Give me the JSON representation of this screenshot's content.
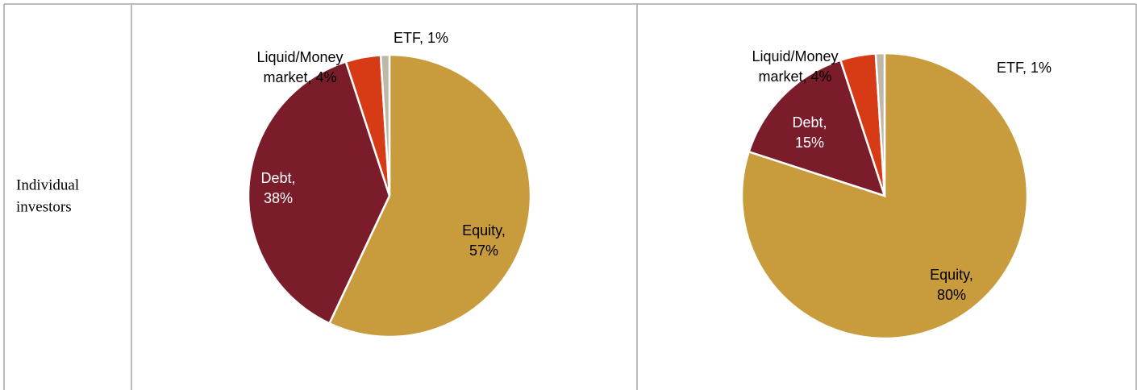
{
  "table": {
    "rows": [
      {
        "label": [
          "Individual",
          "investors"
        ]
      }
    ]
  },
  "chart_data": [
    {
      "type": "pie",
      "categories": [
        "Equity",
        "Debt",
        "Liquid/Money market",
        "ETF"
      ],
      "values": [
        57,
        38,
        4,
        1
      ],
      "value_labels": [
        [
          "Equity,",
          "57%"
        ],
        [
          "Debt,",
          "38%"
        ],
        [
          "Liquid/Money",
          "market, 4%"
        ],
        [
          "ETF, 1%"
        ]
      ],
      "colors": [
        "#c89b3c",
        "#7b1c2a",
        "#d63b16",
        "#bfb8a8"
      ]
    },
    {
      "type": "pie",
      "categories": [
        "Equity",
        "Debt",
        "Liquid/Money market",
        "ETF"
      ],
      "values": [
        80,
        15,
        4,
        1
      ],
      "value_labels": [
        [
          "Equity,",
          "80%"
        ],
        [
          "Debt,",
          "15%"
        ],
        [
          "Liquid/Money",
          "market, 4%"
        ],
        [
          "ETF, 1%"
        ]
      ],
      "colors": [
        "#c89b3c",
        "#7b1c2a",
        "#d63b16",
        "#bfb8a8"
      ]
    }
  ]
}
